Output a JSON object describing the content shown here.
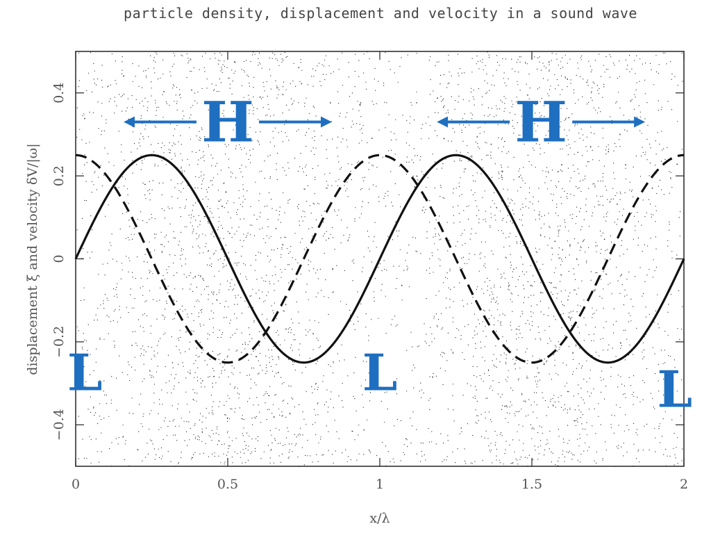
{
  "chart_data": {
    "type": "line",
    "title": "particle density, displacement and velocity in a sound wave",
    "xlabel": "x/λ",
    "ylabel": "displacement ξ and velocity δV/|ω|",
    "xlim": [
      0,
      2
    ],
    "ylim": [
      -0.5,
      0.5
    ],
    "x_ticks": [
      0,
      0.5,
      1,
      1.5,
      2
    ],
    "x_tick_labels": [
      "0",
      "0.5",
      "1",
      "1.5",
      "2"
    ],
    "y_ticks": [
      -0.4,
      -0.2,
      0,
      0.2,
      0.4
    ],
    "y_tick_labels": [
      "−0.4",
      "−0.2",
      "0",
      "0.2",
      "0.4"
    ],
    "series": [
      {
        "style": "solid",
        "color": "#111111",
        "x": [
          0,
          0.25,
          0.5,
          0.75,
          1.0,
          1.25,
          1.5,
          1.75,
          2.0
        ],
        "y": [
          0,
          0.25,
          0,
          -0.25,
          0,
          0.25,
          0,
          -0.25,
          0
        ]
      },
      {
        "style": "dashed",
        "color": "#111111",
        "x": [
          0,
          0.25,
          0.5,
          0.75,
          1.0,
          1.25,
          1.5,
          1.75,
          2.0
        ],
        "y": [
          0.25,
          0,
          -0.25,
          0,
          0.25,
          0,
          -0.25,
          0,
          0.25
        ]
      }
    ],
    "background": "scattered particle dots, denser near the H regions",
    "annotations": [
      {
        "text": "H",
        "x": 0.5,
        "y": 0.33,
        "arrows": "both",
        "color": "#1f6fc0"
      },
      {
        "text": "H",
        "x": 1.53,
        "y": 0.33,
        "arrows": "both",
        "color": "#1f6fc0"
      },
      {
        "text": "L",
        "x": 0.03,
        "y": -0.27,
        "color": "#1f6fc0"
      },
      {
        "text": "L",
        "x": 1.0,
        "y": -0.27,
        "color": "#1f6fc0"
      },
      {
        "text": "L",
        "x": 1.97,
        "y": -0.31,
        "color": "#1f6fc0"
      }
    ],
    "grid": false
  },
  "colors": {
    "accent": "#1f6fc0",
    "curve": "#111111",
    "dots": "#222222"
  }
}
